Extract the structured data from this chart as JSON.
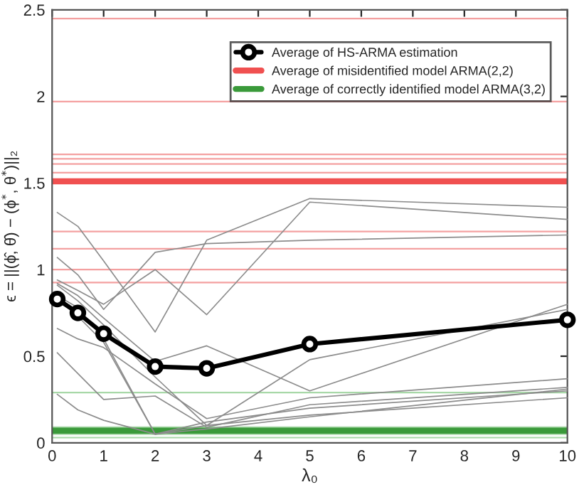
{
  "chart_data": {
    "type": "line",
    "xlabel": "λ₀",
    "ylabel": "ϵ = ||(ϕ̂, θ̂) − (ϕ$^{*}$, θ$^{*}$)||₂",
    "x": [
      0.1,
      0.5,
      1,
      2,
      3,
      5,
      10
    ],
    "xlim": [
      0,
      10
    ],
    "xticks": [
      0,
      1,
      2,
      3,
      4,
      5,
      6,
      7,
      8,
      9,
      10
    ],
    "ylim": [
      0,
      2.5
    ],
    "yticks": [
      0,
      0.5,
      1,
      1.5,
      2,
      2.5
    ],
    "grid": false,
    "legend": "top right",
    "ref_lines": [
      {
        "axis": "y",
        "value": 1.51,
        "color": "#f05050",
        "label": "Average of misidentified model ARMA(2,2)"
      },
      {
        "axis": "y",
        "value": 0.07,
        "color": "#3a9a3a",
        "label": "Average of correctly identified model ARMA(3,2)"
      },
      {
        "axis": "y",
        "value": 2.45,
        "color": "#f4a0a0"
      },
      {
        "axis": "y",
        "value": 1.97,
        "color": "#f4a0a0"
      },
      {
        "axis": "y",
        "value": 1.665,
        "color": "#f4a0a0"
      },
      {
        "axis": "y",
        "value": 1.64,
        "color": "#f4a0a0"
      },
      {
        "axis": "y",
        "value": 1.61,
        "color": "#f4a0a0"
      },
      {
        "axis": "y",
        "value": 1.56,
        "color": "#f4a0a0"
      },
      {
        "axis": "y",
        "value": 1.22,
        "color": "#f4a0a0"
      },
      {
        "axis": "y",
        "value": 1.12,
        "color": "#f4a0a0"
      },
      {
        "axis": "y",
        "value": 1.0,
        "color": "#f4a0a0"
      },
      {
        "axis": "y",
        "value": 0.925,
        "color": "#f4a0a0"
      },
      {
        "axis": "y",
        "value": 0.29,
        "color": "#a8d8a8"
      },
      {
        "axis": "y",
        "value": 0.09,
        "color": "#a8d8a8"
      },
      {
        "axis": "y",
        "value": 0.05,
        "color": "#a8d8a8"
      },
      {
        "axis": "y",
        "value": 0.03,
        "color": "#a8d8a8"
      }
    ],
    "series": [
      {
        "color": "#8c8c8c",
        "values": [
          1.33,
          1.25,
          1.05,
          0.64,
          1.17,
          1.41,
          1.36
        ]
      },
      {
        "color": "#8c8c8c",
        "values": [
          1.07,
          0.97,
          0.77,
          1.1,
          1.15,
          1.17,
          1.2
        ]
      },
      {
        "color": "#8c8c8c",
        "values": [
          0.94,
          0.88,
          0.8,
          1.0,
          0.74,
          1.39,
          1.29
        ]
      },
      {
        "color": "#8c8c8c",
        "values": [
          0.92,
          0.85,
          0.72,
          0.47,
          0.56,
          0.3,
          0.8
        ]
      },
      {
        "color": "#8c8c8c",
        "values": [
          0.91,
          0.82,
          0.68,
          0.38,
          0.1,
          0.48,
          0.77
        ]
      },
      {
        "color": "#8c8c8c",
        "values": [
          0.66,
          0.6,
          0.55,
          0.34,
          0.14,
          0.26,
          0.37
        ]
      },
      {
        "color": "#8c8c8c",
        "values": [
          0.52,
          0.4,
          0.25,
          0.27,
          0.09,
          0.22,
          0.32
        ]
      },
      {
        "color": "#8c8c8c",
        "values": [
          0.28,
          0.19,
          0.13,
          0.05,
          0.12,
          0.2,
          0.3
        ]
      },
      {
        "color": "#8c8c8c",
        "values": [
          0.85,
          0.78,
          0.6,
          0.05,
          0.1,
          0.16,
          0.26
        ]
      },
      {
        "color": "#8c8c8c",
        "values": [
          0.86,
          0.73,
          0.58,
          0.05,
          0.08,
          0.15,
          0.31
        ]
      },
      {
        "name": "Average of HS-ARMA estimation",
        "color": "#000000",
        "marker": "circle",
        "values": [
          0.83,
          0.75,
          0.63,
          0.44,
          0.43,
          0.57,
          0.71
        ]
      }
    ]
  }
}
